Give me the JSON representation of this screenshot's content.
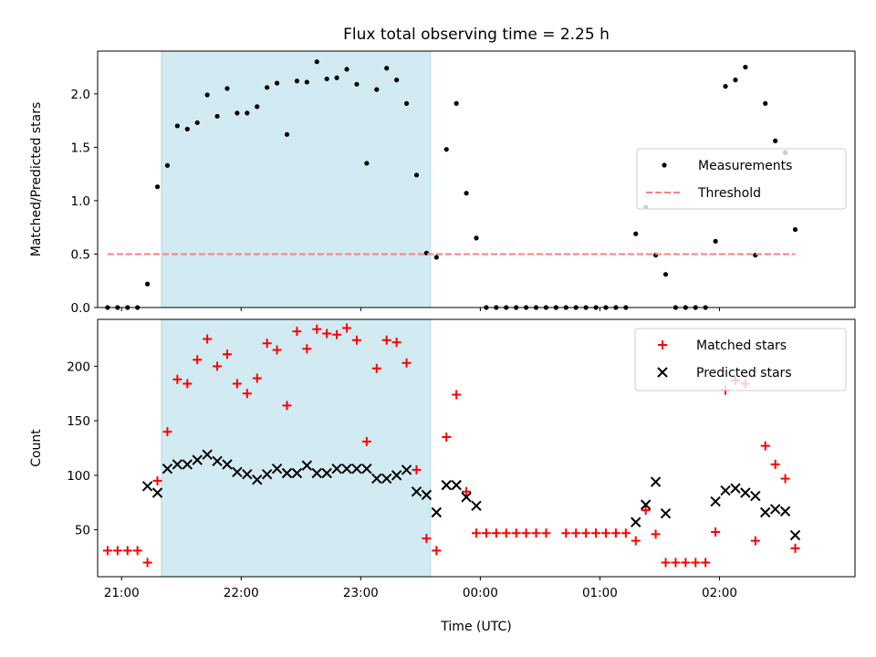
{
  "chart_data": [
    {
      "type": "scatter",
      "title": "Flux total observing time = 2.25 h",
      "ylabel": "Matched/Predicted stars",
      "xlim": [
        "20:48",
        "03:08"
      ],
      "ylim": [
        0,
        2.4
      ],
      "yticks": [
        "0.0",
        "0.5",
        "1.0",
        "1.5",
        "2.0"
      ],
      "grid": false,
      "legend_position": "center-right",
      "highlight_span": {
        "start": "21:20",
        "end": "23:35",
        "color": "#add8e6"
      },
      "series": [
        {
          "name": "Measurements",
          "marker": "dot",
          "color": "#000000",
          "points": [
            [
              "20:53",
              0.0
            ],
            [
              "20:58",
              0.0
            ],
            [
              "21:03",
              0.0
            ],
            [
              "21:08",
              0.0
            ],
            [
              "21:13",
              0.22
            ],
            [
              "21:18",
              1.13
            ],
            [
              "21:23",
              1.33
            ],
            [
              "21:28",
              1.7
            ],
            [
              "21:33",
              1.67
            ],
            [
              "21:38",
              1.73
            ],
            [
              "21:43",
              1.99
            ],
            [
              "21:48",
              1.79
            ],
            [
              "21:53",
              2.05
            ],
            [
              "21:58",
              1.82
            ],
            [
              "22:03",
              1.82
            ],
            [
              "22:08",
              1.88
            ],
            [
              "22:13",
              2.06
            ],
            [
              "22:18",
              2.1
            ],
            [
              "22:23",
              1.62
            ],
            [
              "22:28",
              2.12
            ],
            [
              "22:33",
              2.11
            ],
            [
              "22:38",
              2.3
            ],
            [
              "22:43",
              2.14
            ],
            [
              "22:48",
              2.15
            ],
            [
              "22:53",
              2.23
            ],
            [
              "22:58",
              2.09
            ],
            [
              "23:03",
              1.35
            ],
            [
              "23:08",
              2.04
            ],
            [
              "23:13",
              2.24
            ],
            [
              "23:18",
              2.13
            ],
            [
              "23:23",
              1.91
            ],
            [
              "23:28",
              1.24
            ],
            [
              "23:33",
              0.51
            ],
            [
              "23:38",
              0.47
            ],
            [
              "23:43",
              1.48
            ],
            [
              "23:48",
              1.91
            ],
            [
              "23:53",
              1.07
            ],
            [
              "23:58",
              0.65
            ],
            [
              "00:03",
              0.0
            ],
            [
              "00:08",
              0.0
            ],
            [
              "00:13",
              0.0
            ],
            [
              "00:18",
              0.0
            ],
            [
              "00:23",
              0.0
            ],
            [
              "00:28",
              0.0
            ],
            [
              "00:33",
              0.0
            ],
            [
              "00:38",
              0.0
            ],
            [
              "00:43",
              0.0
            ],
            [
              "00:48",
              0.0
            ],
            [
              "00:53",
              0.0
            ],
            [
              "00:58",
              0.0
            ],
            [
              "01:03",
              0.0
            ],
            [
              "01:08",
              0.0
            ],
            [
              "01:13",
              0.0
            ],
            [
              "01:18",
              0.69
            ],
            [
              "01:23",
              0.94
            ],
            [
              "01:28",
              0.49
            ],
            [
              "01:33",
              0.31
            ],
            [
              "01:38",
              0.0
            ],
            [
              "01:43",
              0.0
            ],
            [
              "01:48",
              0.0
            ],
            [
              "01:53",
              0.0
            ],
            [
              "01:58",
              0.62
            ],
            [
              "02:03",
              2.07
            ],
            [
              "02:08",
              2.13
            ],
            [
              "02:13",
              2.25
            ],
            [
              "02:18",
              0.49
            ],
            [
              "02:23",
              1.91
            ],
            [
              "02:28",
              1.56
            ],
            [
              "02:33",
              1.45
            ],
            [
              "02:38",
              0.73
            ]
          ]
        },
        {
          "name": "Threshold",
          "marker": "dashed-line",
          "color": "#ff7f7f",
          "points": [
            [
              "20:53",
              0.5
            ],
            [
              "02:38",
              0.5
            ]
          ]
        }
      ]
    },
    {
      "type": "scatter",
      "xlabel": "Time (UTC)",
      "ylabel": "Count",
      "xlim": [
        "20:48",
        "03:08"
      ],
      "ylim": [
        7,
        243
      ],
      "yticks": [
        "50",
        "100",
        "150",
        "200"
      ],
      "xticks": [
        "21:00",
        "22:00",
        "23:00",
        "00:00",
        "01:00",
        "02:00"
      ],
      "grid": false,
      "legend_position": "top-right",
      "highlight_span": {
        "start": "21:20",
        "end": "23:35",
        "color": "#add8e6"
      },
      "series": [
        {
          "name": "Matched stars",
          "marker": "plus",
          "color": "#ff0000",
          "points": [
            [
              "20:53",
              31
            ],
            [
              "20:58",
              31
            ],
            [
              "21:03",
              31
            ],
            [
              "21:08",
              31
            ],
            [
              "21:13",
              20
            ],
            [
              "21:18",
              95
            ],
            [
              "21:23",
              140
            ],
            [
              "21:28",
              188
            ],
            [
              "21:33",
              184
            ],
            [
              "21:38",
              206
            ],
            [
              "21:43",
              225
            ],
            [
              "21:48",
              200
            ],
            [
              "21:53",
              211
            ],
            [
              "21:58",
              184
            ],
            [
              "22:03",
              175
            ],
            [
              "22:08",
              189
            ],
            [
              "22:13",
              221
            ],
            [
              "22:18",
              215
            ],
            [
              "22:23",
              164
            ],
            [
              "22:28",
              232
            ],
            [
              "22:33",
              216
            ],
            [
              "22:38",
              234
            ],
            [
              "22:43",
              230
            ],
            [
              "22:48",
              229
            ],
            [
              "22:53",
              235
            ],
            [
              "22:58",
              224
            ],
            [
              "23:03",
              131
            ],
            [
              "23:08",
              198
            ],
            [
              "23:13",
              224
            ],
            [
              "23:18",
              222
            ],
            [
              "23:23",
              203
            ],
            [
              "23:28",
              105
            ],
            [
              "23:33",
              42
            ],
            [
              "23:38",
              31
            ],
            [
              "23:43",
              135
            ],
            [
              "23:48",
              174
            ],
            [
              "23:53",
              85
            ],
            [
              "23:58",
              47
            ],
            [
              "00:03",
              47
            ],
            [
              "00:08",
              47
            ],
            [
              "00:13",
              47
            ],
            [
              "00:18",
              47
            ],
            [
              "00:23",
              47
            ],
            [
              "00:28",
              47
            ],
            [
              "00:33",
              47
            ],
            [
              "00:43",
              47
            ],
            [
              "00:48",
              47
            ],
            [
              "00:53",
              47
            ],
            [
              "00:58",
              47
            ],
            [
              "01:03",
              47
            ],
            [
              "01:08",
              47
            ],
            [
              "01:13",
              47
            ],
            [
              "01:18",
              40
            ],
            [
              "01:23",
              68
            ],
            [
              "01:28",
              46
            ],
            [
              "01:33",
              20
            ],
            [
              "01:38",
              20
            ],
            [
              "01:43",
              20
            ],
            [
              "01:48",
              20
            ],
            [
              "01:53",
              20
            ],
            [
              "01:58",
              48
            ],
            [
              "02:03",
              178
            ],
            [
              "02:08",
              187
            ],
            [
              "02:13",
              184
            ],
            [
              "02:18",
              40
            ],
            [
              "02:23",
              127
            ],
            [
              "02:28",
              110
            ],
            [
              "02:33",
              97
            ],
            [
              "02:38",
              33
            ]
          ]
        },
        {
          "name": "Predicted stars",
          "marker": "x",
          "color": "#000000",
          "points": [
            [
              "21:13",
              90
            ],
            [
              "21:18",
              84
            ],
            [
              "21:23",
              106
            ],
            [
              "21:28",
              110
            ],
            [
              "21:33",
              110
            ],
            [
              "21:38",
              114
            ],
            [
              "21:43",
              119
            ],
            [
              "21:48",
              113
            ],
            [
              "21:53",
              110
            ],
            [
              "21:58",
              103
            ],
            [
              "22:03",
              101
            ],
            [
              "22:08",
              96
            ],
            [
              "22:13",
              101
            ],
            [
              "22:18",
              106
            ],
            [
              "22:23",
              102
            ],
            [
              "22:28",
              102
            ],
            [
              "22:33",
              109
            ],
            [
              "22:38",
              102
            ],
            [
              "22:43",
              102
            ],
            [
              "22:48",
              106
            ],
            [
              "22:53",
              106
            ],
            [
              "22:58",
              106
            ],
            [
              "23:03",
              106
            ],
            [
              "23:08",
              97
            ],
            [
              "23:13",
              97
            ],
            [
              "23:18",
              100
            ],
            [
              "23:23",
              105
            ],
            [
              "23:28",
              85
            ],
            [
              "23:33",
              82
            ],
            [
              "23:38",
              66
            ],
            [
              "23:43",
              91
            ],
            [
              "23:48",
              91
            ],
            [
              "23:53",
              80
            ],
            [
              "23:58",
              72
            ],
            [
              "01:18",
              57
            ],
            [
              "01:23",
              73
            ],
            [
              "01:28",
              94
            ],
            [
              "01:33",
              65
            ],
            [
              "01:58",
              76
            ],
            [
              "02:03",
              86
            ],
            [
              "02:08",
              88
            ],
            [
              "02:13",
              84
            ],
            [
              "02:18",
              81
            ],
            [
              "02:23",
              66
            ],
            [
              "02:28",
              69
            ],
            [
              "02:33",
              67
            ],
            [
              "02:38",
              45
            ]
          ]
        }
      ]
    }
  ]
}
